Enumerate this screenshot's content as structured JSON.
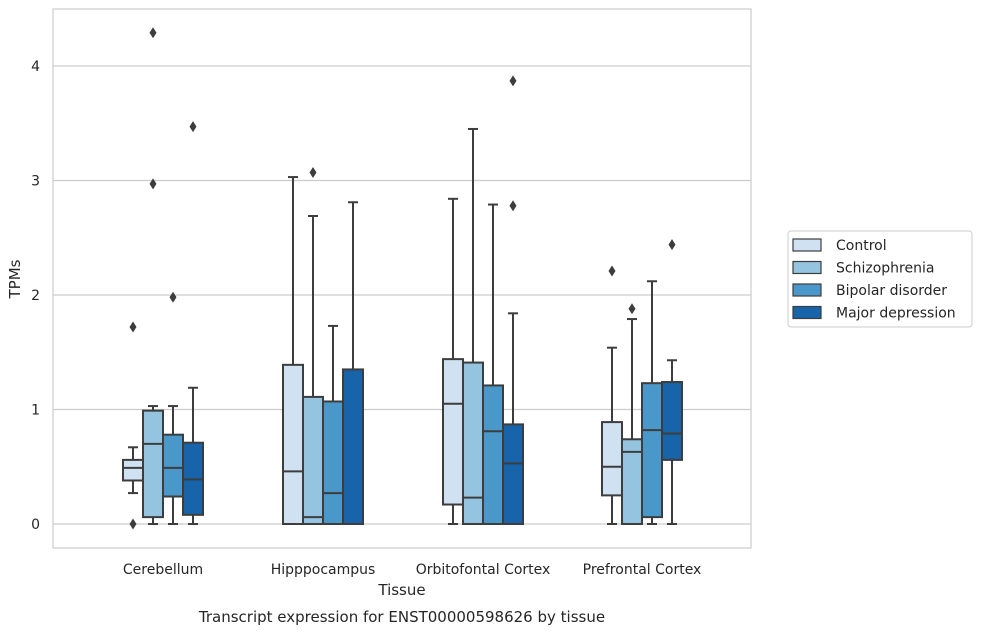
{
  "chart_data": {
    "type": "box",
    "title": "",
    "xlabel": "Tissue",
    "ylabel": "TPMs",
    "caption": "Transcript expression for ENST00000598626 by tissue",
    "ylim": [
      -0.2,
      4.5
    ],
    "yticks": [
      0,
      1,
      2,
      3,
      4
    ],
    "grid": "horizontal",
    "legend_position": "right",
    "categories": [
      "Cerebellum",
      "Hipppocampus",
      "Orbitofontal Cortex",
      "Prefrontal Cortex"
    ],
    "series": [
      {
        "name": "Control",
        "color": "#d0e1f2",
        "boxes": [
          {
            "whislo": 0.27,
            "q1": 0.38,
            "med": 0.49,
            "q3": 0.56,
            "whishi": 0.67,
            "fliers": [
              1.72,
              0.0
            ]
          },
          {
            "whislo": 0.0,
            "q1": 0.0,
            "med": 0.46,
            "q3": 1.39,
            "whishi": 3.03,
            "fliers": []
          },
          {
            "whislo": 0.0,
            "q1": 0.17,
            "med": 1.05,
            "q3": 1.44,
            "whishi": 2.84,
            "fliers": []
          },
          {
            "whislo": 0.0,
            "q1": 0.25,
            "med": 0.5,
            "q3": 0.89,
            "whishi": 1.54,
            "fliers": [
              2.21
            ]
          }
        ]
      },
      {
        "name": "Schizophrenia",
        "color": "#94c4df",
        "boxes": [
          {
            "whislo": 0.0,
            "q1": 0.06,
            "med": 0.7,
            "q3": 0.99,
            "whishi": 1.03,
            "fliers": [
              4.29,
              2.97
            ]
          },
          {
            "whislo": 0.0,
            "q1": 0.0,
            "med": 0.06,
            "q3": 1.11,
            "whishi": 2.69,
            "fliers": [
              3.07
            ]
          },
          {
            "whislo": 0.0,
            "q1": 0.0,
            "med": 0.23,
            "q3": 1.41,
            "whishi": 3.45,
            "fliers": []
          },
          {
            "whislo": 0.0,
            "q1": 0.0,
            "med": 0.63,
            "q3": 0.74,
            "whishi": 1.79,
            "fliers": [
              1.88
            ]
          }
        ]
      },
      {
        "name": "Bipolar disorder",
        "color": "#4a98c9",
        "boxes": [
          {
            "whislo": 0.0,
            "q1": 0.24,
            "med": 0.49,
            "q3": 0.78,
            "whishi": 1.03,
            "fliers": [
              1.98
            ]
          },
          {
            "whislo": 0.0,
            "q1": 0.0,
            "med": 0.27,
            "q3": 1.07,
            "whishi": 1.73,
            "fliers": []
          },
          {
            "whislo": 0.0,
            "q1": 0.0,
            "med": 0.81,
            "q3": 1.21,
            "whishi": 2.79,
            "fliers": []
          },
          {
            "whislo": 0.0,
            "q1": 0.06,
            "med": 0.82,
            "q3": 1.23,
            "whishi": 2.12,
            "fliers": []
          }
        ]
      },
      {
        "name": "Major depression",
        "color": "#1764ab",
        "boxes": [
          {
            "whislo": 0.0,
            "q1": 0.08,
            "med": 0.39,
            "q3": 0.71,
            "whishi": 1.19,
            "fliers": [
              3.47
            ]
          },
          {
            "whislo": 0.0,
            "q1": 0.0,
            "med": 0.0,
            "q3": 1.35,
            "whishi": 2.81,
            "fliers": []
          },
          {
            "whislo": 0.0,
            "q1": 0.0,
            "med": 0.53,
            "q3": 0.87,
            "whishi": 1.84,
            "fliers": [
              3.87,
              2.78
            ]
          },
          {
            "whislo": 0.0,
            "q1": 0.56,
            "med": 0.79,
            "q3": 1.24,
            "whishi": 1.43,
            "fliers": [
              2.44
            ]
          }
        ]
      }
    ]
  }
}
